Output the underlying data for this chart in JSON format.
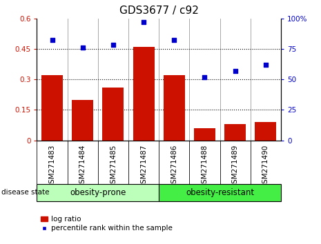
{
  "title": "GDS3677 / c92",
  "categories": [
    "GSM271483",
    "GSM271484",
    "GSM271485",
    "GSM271487",
    "GSM271486",
    "GSM271488",
    "GSM271489",
    "GSM271490"
  ],
  "log_ratio": [
    0.32,
    0.2,
    0.26,
    0.46,
    0.32,
    0.06,
    0.08,
    0.09
  ],
  "percentile_rank": [
    82,
    76,
    78,
    97,
    82,
    52,
    57,
    62
  ],
  "bar_color": "#cc1100",
  "marker_color": "#0000cc",
  "ylim_left": [
    0,
    0.6
  ],
  "ylim_right": [
    0,
    100
  ],
  "yticks_left": [
    0,
    0.15,
    0.3,
    0.45,
    0.6
  ],
  "ytick_labels_left": [
    "0",
    "0.15",
    "0.3",
    "0.45",
    "0.6"
  ],
  "yticks_right": [
    0,
    25,
    50,
    75,
    100
  ],
  "ytick_labels_right": [
    "0",
    "25",
    "50",
    "75",
    "100%"
  ],
  "group1_label": "obesity-prone",
  "group2_label": "obesity-resistant",
  "group1_indices": [
    0,
    1,
    2,
    3
  ],
  "group2_indices": [
    4,
    5,
    6,
    7
  ],
  "group1_color": "#bbffbb",
  "group2_color": "#44ee44",
  "disease_state_label": "disease state",
  "legend_bar_label": "log ratio",
  "legend_marker_label": "percentile rank within the sample",
  "tick_bg_color": "#c8c8c8",
  "bar_width": 0.7,
  "title_fontsize": 11,
  "tick_fontsize": 7.5,
  "label_fontsize": 8.5,
  "gridline_yticks": [
    0.15,
    0.3,
    0.45
  ]
}
